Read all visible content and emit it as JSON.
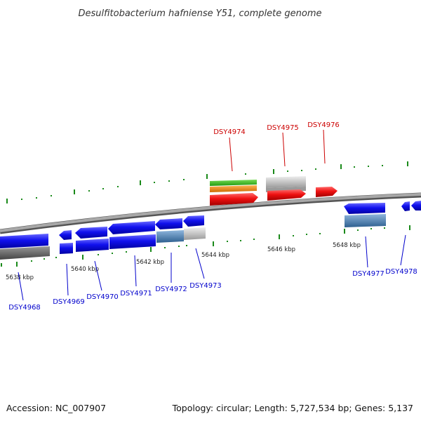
{
  "title": "Desulfitobacterium hafniense Y51, complete genome",
  "footer": {
    "accession": "Accession: NC_007907",
    "summary": "Topology: circular; Length: 5,727,534 bp; Genes: 5,137"
  },
  "scale_labels": [
    "5638 kbp",
    "5640 kbp",
    "5642 kbp",
    "5644 kbp",
    "5646 kbp",
    "5648 kbp"
  ],
  "genes": {
    "forward": [
      "DSY4974",
      "DSY4975",
      "DSY4976"
    ],
    "reverse": [
      "DSY4968",
      "DSY4969",
      "DSY4970",
      "DSY4971",
      "DSY4972",
      "DSY4973",
      "DSY4977",
      "DSY4978"
    ]
  },
  "colors": {
    "forward_label": "#cc0000",
    "reverse_label": "#0000cc",
    "forward_gene": "#ee1111",
    "reverse_gene": "#1111ee",
    "backbone": "#8a8a8a",
    "tick": "#1a8a1a",
    "green_track": "#33bb22",
    "orange_track": "#ee8811",
    "grey_track": "#bdbdbd",
    "steelblue_track": "#4a7fb0",
    "dark_track": "#666666"
  }
}
